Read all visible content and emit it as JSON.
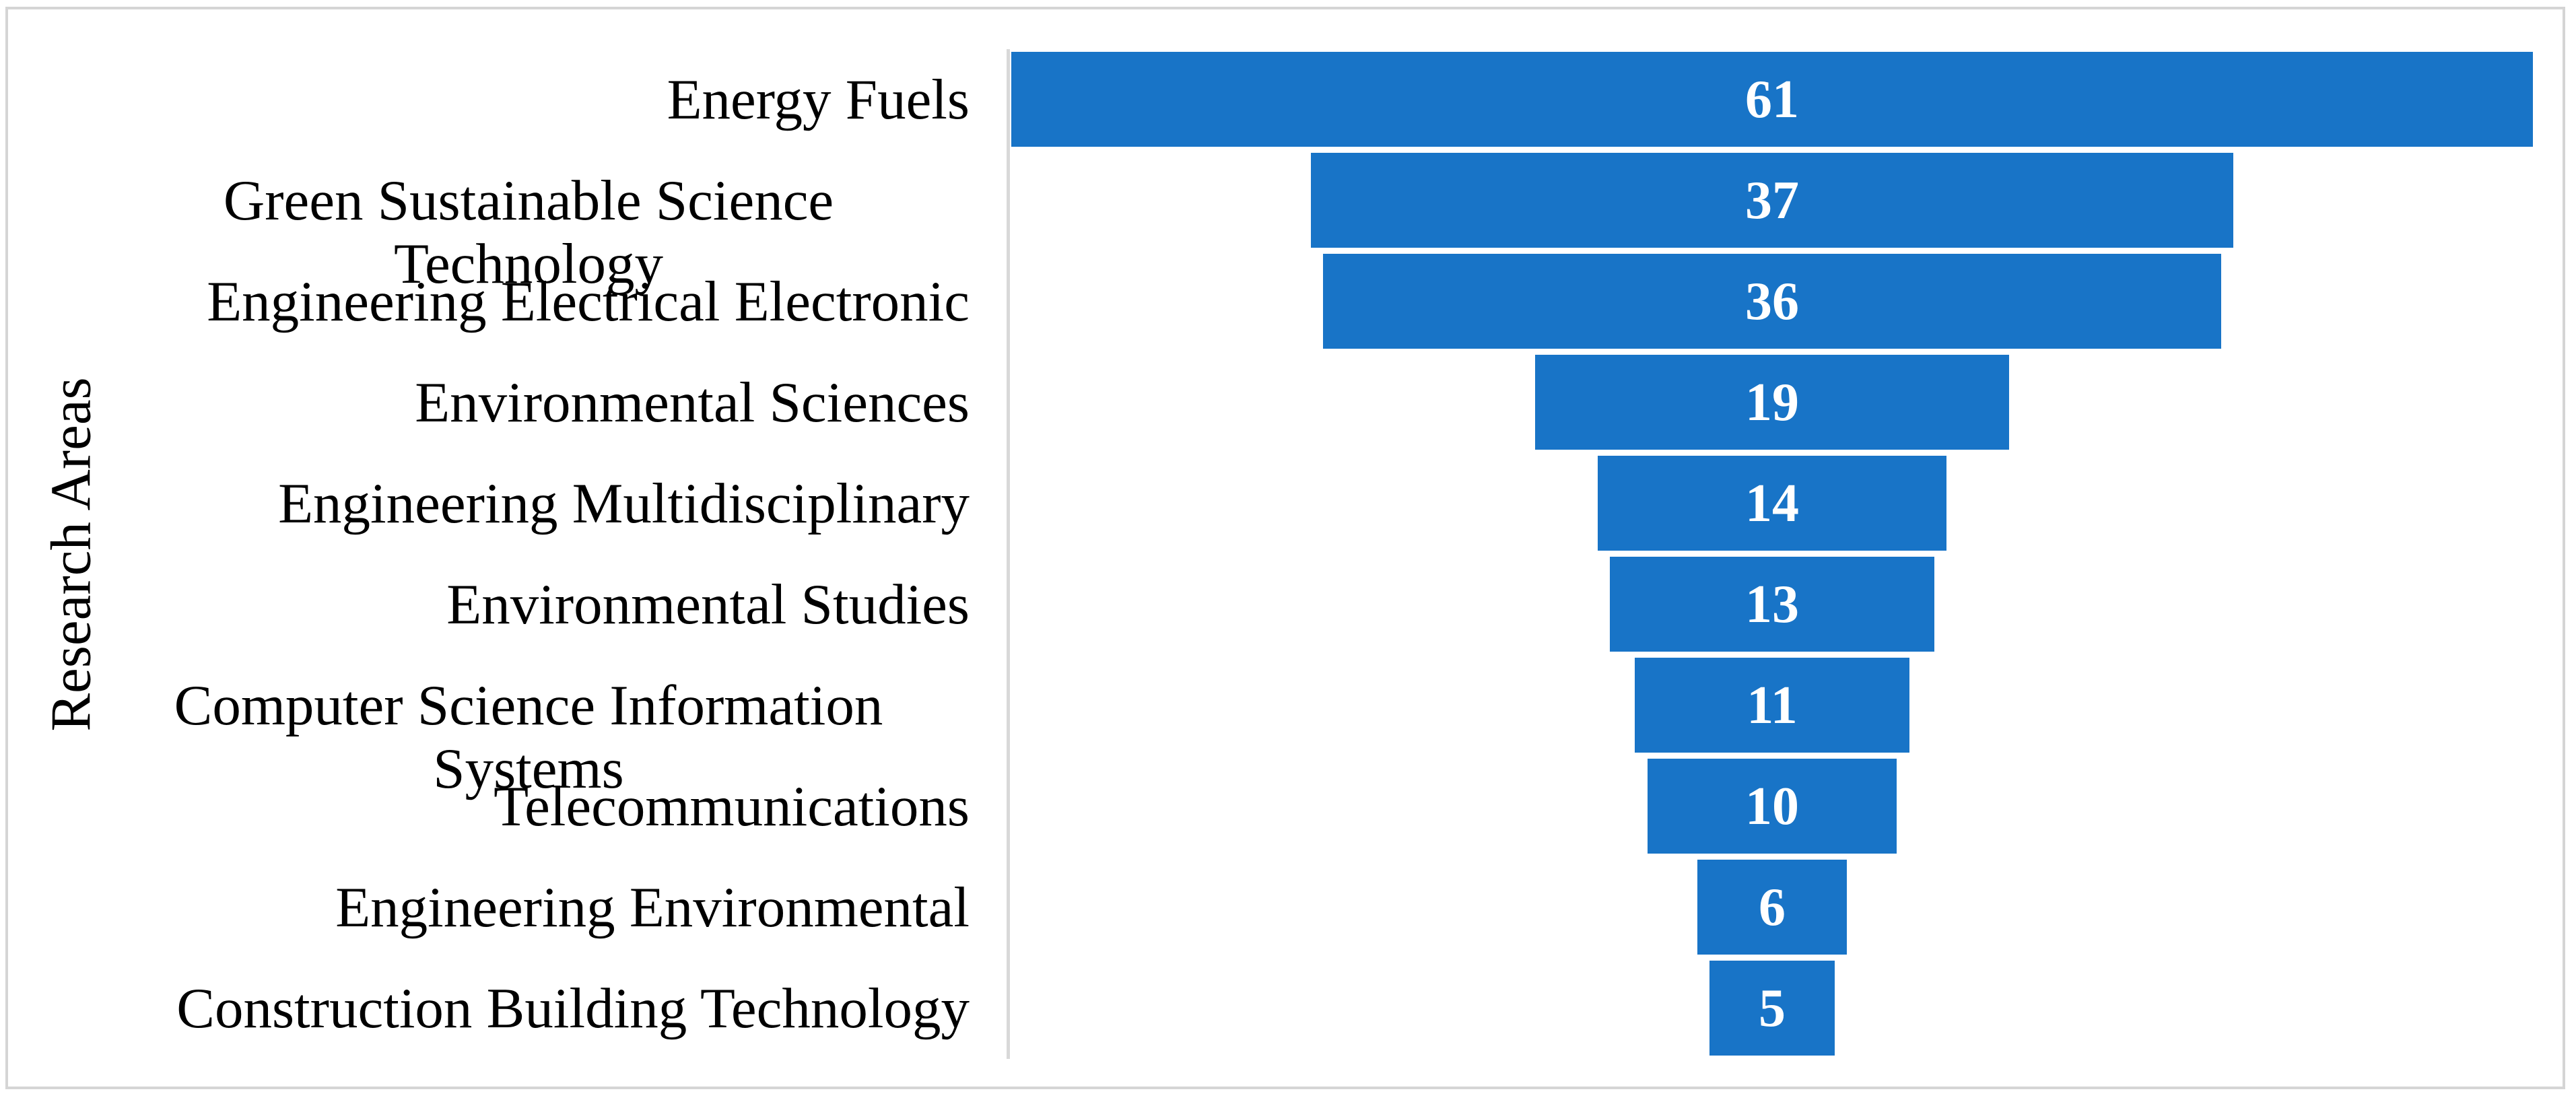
{
  "chart_data": {
    "type": "bar",
    "subtype": "funnel",
    "title": "",
    "ylabel": "Research Areas",
    "xlabel": "",
    "categories": [
      "Energy Fuels",
      "Green Sustainable Science Technology",
      "Engineering Electrical Electronic",
      "Environmental Sciences",
      "Engineering Multidisciplinary",
      "Environmental Studies",
      "Computer Science Information Systems",
      "Telecommunications",
      "Engineering Environmental",
      "Construction Building Technology"
    ],
    "category_lines": [
      [
        "Energy Fuels"
      ],
      [
        "Green Sustainable Science",
        "Technology"
      ],
      [
        "Engineering Electrical Electronic"
      ],
      [
        "Environmental Sciences"
      ],
      [
        "Engineering Multidisciplinary"
      ],
      [
        "Environmental Studies"
      ],
      [
        "Computer Science Information",
        "Systems"
      ],
      [
        "Telecommunications"
      ],
      [
        "Engineering Environmental"
      ],
      [
        "Construction Building Technology"
      ]
    ],
    "values": [
      61,
      37,
      36,
      19,
      14,
      13,
      11,
      10,
      6,
      5
    ],
    "value_labels": [
      "61",
      "37",
      "36",
      "19",
      "14",
      "13",
      "11",
      "10",
      "6",
      "5"
    ],
    "xlim": [
      0,
      61
    ],
    "grid": false,
    "legend_position": "none",
    "bars_centered": true,
    "colors": {
      "bar": "#1874c7",
      "value_label": "#ffffff",
      "category_label": "#000000",
      "axis_line": "#d9d9d9",
      "chart_border": "#d5d5d5",
      "background": "#ffffff"
    }
  }
}
